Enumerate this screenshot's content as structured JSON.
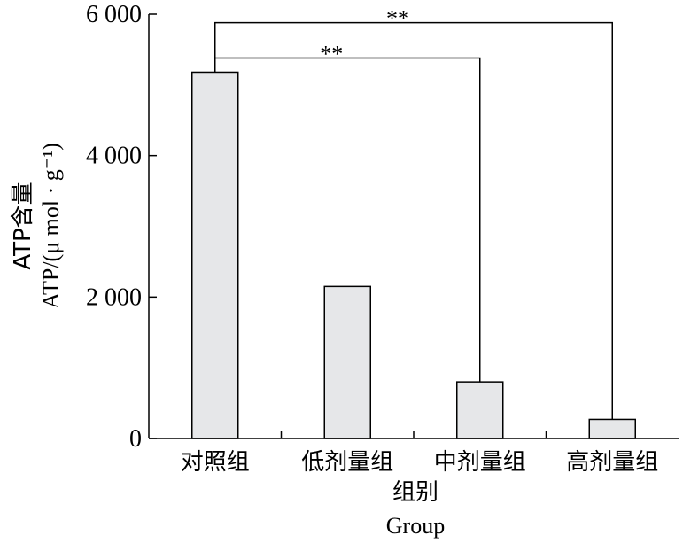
{
  "chart_data": {
    "type": "bar",
    "categories": [
      "对照组",
      "低剂量组",
      "中剂量组",
      "高剂量组"
    ],
    "values": [
      5180,
      2150,
      800,
      270
    ],
    "ylim": [
      0,
      6000
    ],
    "yticks": [
      0,
      2000,
      4000,
      6000
    ],
    "ytick_labels": [
      "0",
      "2 000",
      "4 000",
      "6 000"
    ],
    "xlabel_cn": "组别",
    "xlabel_en": "Group",
    "ylabel_cn": "ATP含量",
    "ylabel_en": "ATP/(μ mol · g⁻¹)",
    "bar_color": "#e6e7e9",
    "significance": [
      {
        "from": 0,
        "to": 2,
        "label": "**",
        "level": 5380
      },
      {
        "from": 0,
        "to": 3,
        "label": "**",
        "level": 5880
      }
    ],
    "grid": false,
    "legend": "none"
  }
}
